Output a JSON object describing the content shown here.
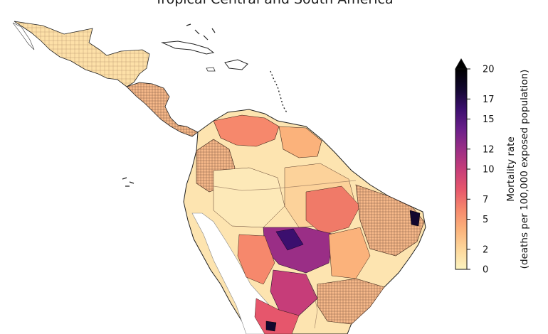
{
  "title": "Tropical Central and South America",
  "colorbar": {
    "label_line1": "Mortality rate",
    "label_line2": "(deaths per 100,000 exposed population)",
    "ticks": [
      0,
      2,
      5,
      7,
      10,
      12,
      15,
      17,
      20
    ],
    "range": [
      0,
      20
    ],
    "extend": "max",
    "colormap": "magma_r",
    "stops": [
      "#fcf4c0",
      "#fdd79b",
      "#fbb27b",
      "#f6886c",
      "#e6566c",
      "#c63d79",
      "#9a2e86",
      "#6a1f8a",
      "#3b0f6e",
      "#12072e",
      "#000000"
    ]
  },
  "map": {
    "region": "Central and South America",
    "basemap_color": "#fce3ac",
    "border_color": "#222222",
    "unsampled_fill": "#ffffff"
  }
}
